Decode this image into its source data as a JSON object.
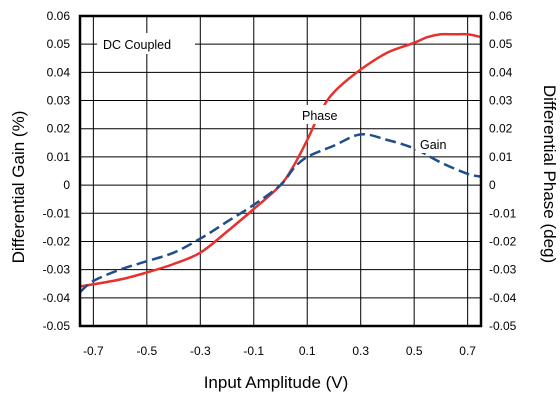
{
  "chart_data": {
    "type": "line",
    "title": "",
    "xlabel": "Input Amplitude (V)",
    "ylabel_left": "Differential Gain (%)",
    "ylabel_right": "Differential Phase (deg)",
    "xlim": [
      -0.75,
      0.75
    ],
    "ylim": [
      -0.05,
      0.06
    ],
    "ylim_right": [
      -0.05,
      0.06
    ],
    "x_ticks": [
      -0.7,
      -0.5,
      -0.3,
      -0.1,
      0.1,
      0.3,
      0.5,
      0.7
    ],
    "y_ticks": [
      -0.05,
      -0.04,
      -0.03,
      -0.02,
      -0.01,
      0,
      0.01,
      0.02,
      0.03,
      0.04,
      0.05,
      0.06
    ],
    "x_tick_labels": [
      "-0.7",
      "-0.5",
      "-0.3",
      "-0.1",
      "0.1",
      "0.3",
      "0.5",
      "0.7"
    ],
    "y_tick_labels": [
      "-0.05",
      "-0.04",
      "-0.03",
      "-0.02",
      "-0.01",
      "0",
      "0.01",
      "0.02",
      "0.03",
      "0.04",
      "0.05",
      "0.06"
    ],
    "grid": true,
    "annotations": {
      "condition": "DC Coupled"
    },
    "series": [
      {
        "name": "Phase",
        "axis": "right",
        "color": "#e8312f",
        "dash": "solid",
        "x": [
          -0.75,
          -0.6,
          -0.5,
          -0.4,
          -0.3,
          -0.2,
          -0.1,
          0.0,
          0.05,
          0.1,
          0.15,
          0.2,
          0.3,
          0.4,
          0.5,
          0.55,
          0.6,
          0.65,
          0.7,
          0.75
        ],
        "y": [
          -0.036,
          -0.0335,
          -0.031,
          -0.028,
          -0.024,
          -0.0165,
          -0.0085,
          0.0,
          0.007,
          0.016,
          0.026,
          0.033,
          0.041,
          0.047,
          0.0505,
          0.0525,
          0.0535,
          0.0535,
          0.0535,
          0.0525
        ]
      },
      {
        "name": "Gain",
        "axis": "left",
        "color": "#1f4e8c",
        "dash": "dashed",
        "x": [
          -0.75,
          -0.7,
          -0.6,
          -0.5,
          -0.4,
          -0.3,
          -0.2,
          -0.1,
          0.0,
          0.05,
          0.1,
          0.2,
          0.3,
          0.4,
          0.5,
          0.6,
          0.7,
          0.75
        ],
        "y": [
          -0.038,
          -0.034,
          -0.03,
          -0.027,
          -0.024,
          -0.019,
          -0.013,
          -0.007,
          0.0,
          0.006,
          0.01,
          0.014,
          0.018,
          0.016,
          0.013,
          0.008,
          0.004,
          0.003
        ]
      }
    ]
  }
}
